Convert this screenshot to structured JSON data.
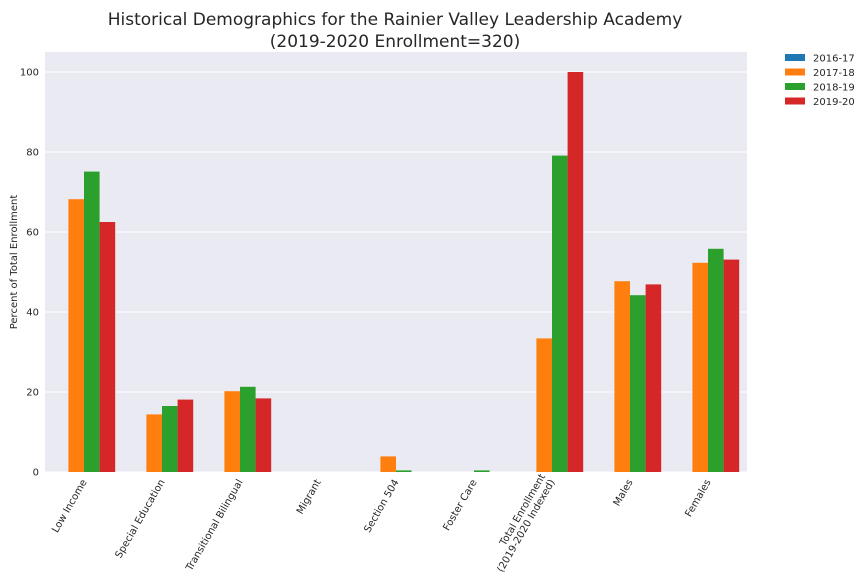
{
  "chart_data": {
    "type": "bar",
    "title_lines": [
      "Historical Demographics for the Rainier Valley Leadership Academy",
      "(2019-2020 Enrollment=320)"
    ],
    "ylabel": "Percent of Total Enrollment",
    "xlabel": "",
    "ylim": [
      0,
      105
    ],
    "yticks": [
      0,
      20,
      40,
      60,
      80,
      100
    ],
    "grid": true,
    "legend_position": "outside-top-right",
    "categories": [
      [
        "Low Income"
      ],
      [
        "Special Education"
      ],
      [
        "Transitional Bilingual"
      ],
      [
        "Migrant"
      ],
      [
        "Section 504"
      ],
      [
        "Foster Care"
      ],
      [
        "Total Enrollment",
        "(2019-2020 Indexed)"
      ],
      [
        "Males"
      ],
      [
        "Females"
      ]
    ],
    "series": [
      {
        "name": "2016-17",
        "color": "#1f77b4",
        "values": [
          0,
          0,
          0,
          0,
          0,
          0,
          0,
          0,
          0
        ]
      },
      {
        "name": "2017-18",
        "color": "#ff7f0e",
        "values": [
          68.2,
          14.4,
          20.2,
          0,
          3.9,
          0,
          33.4,
          47.7,
          52.3
        ]
      },
      {
        "name": "2018-19",
        "color": "#2ca02c",
        "values": [
          75.1,
          16.5,
          21.3,
          0,
          0.4,
          0.4,
          79.1,
          44.2,
          55.8
        ]
      },
      {
        "name": "2019-20",
        "color": "#d62728",
        "values": [
          62.5,
          18.1,
          18.4,
          0,
          0,
          0,
          100,
          46.9,
          53.1
        ]
      }
    ]
  }
}
